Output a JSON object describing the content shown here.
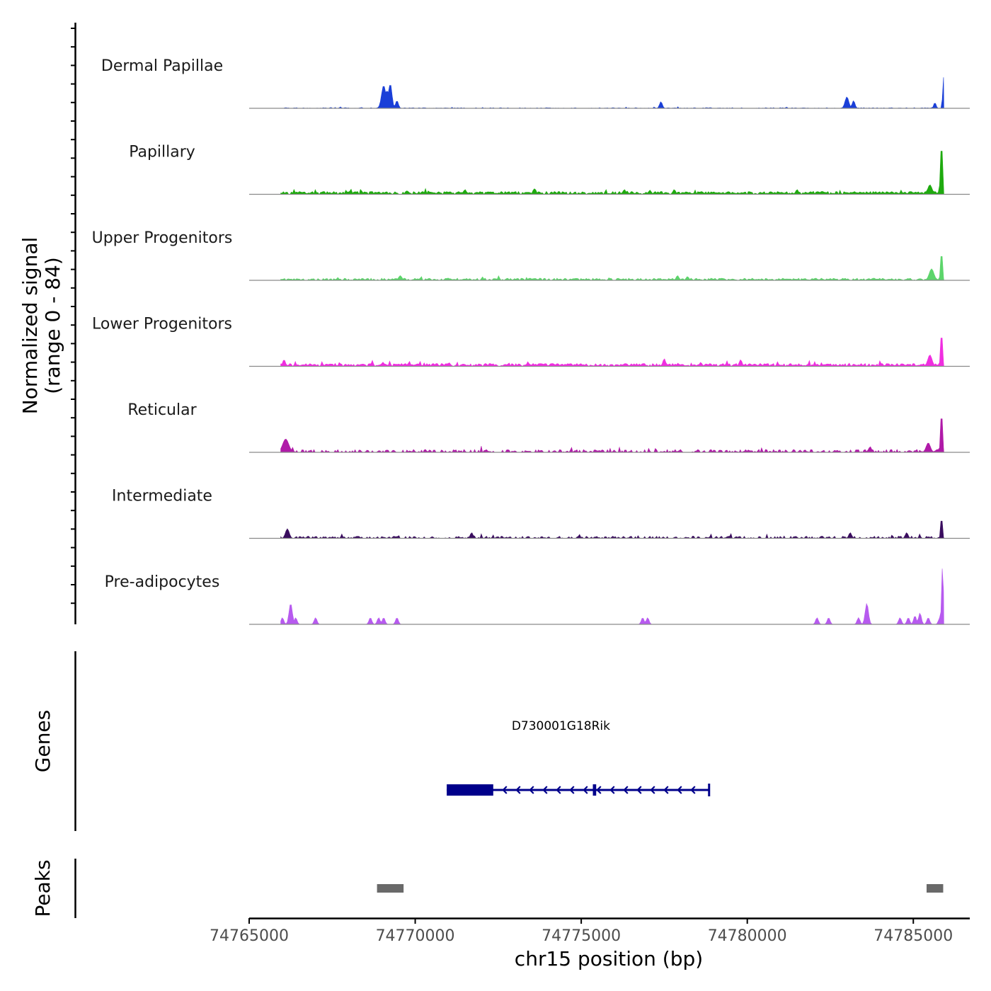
{
  "chart_data": {
    "type": "coverage-track",
    "ylabel_line1": "Normalized signal",
    "ylabel_line2": "(range 0 - 84)",
    "signal_range": [
      0,
      84
    ],
    "xlabel": "chr15 position (bp)",
    "xlim": [
      74765000,
      74786700
    ],
    "xticks": [
      74765000,
      74770000,
      74775000,
      74780000,
      74785000
    ],
    "xtick_labels": [
      "74765000",
      "74770000",
      "74775000",
      "74780000",
      "74785000"
    ],
    "tracks": [
      {
        "name": "Dermal Papillae",
        "color": "#1a3fd8",
        "baseline": 0.5,
        "density": 0.45,
        "peaks": [
          {
            "pos": 74769050,
            "height": 24,
            "width": 90
          },
          {
            "pos": 74769250,
            "height": 26,
            "width": 70
          },
          {
            "pos": 74769150,
            "height": 18,
            "width": 140
          },
          {
            "pos": 74769450,
            "height": 8,
            "width": 60
          },
          {
            "pos": 74777400,
            "height": 7,
            "width": 60
          },
          {
            "pos": 74783000,
            "height": 12,
            "width": 80
          },
          {
            "pos": 74783200,
            "height": 8,
            "width": 60
          },
          {
            "pos": 74785650,
            "height": 6,
            "width": 50
          },
          {
            "pos": 74785900,
            "height": 38,
            "width": 25
          }
        ]
      },
      {
        "name": "Papillary",
        "color": "#1faa0f",
        "baseline": 2,
        "density": 0.95,
        "peaks": [
          {
            "pos": 74771500,
            "height": 5,
            "width": 60
          },
          {
            "pos": 74773600,
            "height": 6,
            "width": 60
          },
          {
            "pos": 74776300,
            "height": 5,
            "width": 60
          },
          {
            "pos": 74777800,
            "height": 5,
            "width": 60
          },
          {
            "pos": 74781500,
            "height": 5,
            "width": 60
          },
          {
            "pos": 74785500,
            "height": 10,
            "width": 90
          },
          {
            "pos": 74785850,
            "height": 55,
            "width": 45
          }
        ]
      },
      {
        "name": "Upper Progenitors",
        "color": "#5cd56b",
        "baseline": 1.5,
        "density": 0.85,
        "peaks": [
          {
            "pos": 74769550,
            "height": 5,
            "width": 70
          },
          {
            "pos": 74777900,
            "height": 5,
            "width": 60
          },
          {
            "pos": 74778200,
            "height": 4,
            "width": 60
          },
          {
            "pos": 74785550,
            "height": 12,
            "width": 100
          },
          {
            "pos": 74785850,
            "height": 32,
            "width": 40
          }
        ]
      },
      {
        "name": "Lower Progenitors",
        "color": "#f02ee0",
        "baseline": 2,
        "density": 0.95,
        "peaks": [
          {
            "pos": 74766050,
            "height": 7,
            "width": 60
          },
          {
            "pos": 74777500,
            "height": 8,
            "width": 60
          },
          {
            "pos": 74779800,
            "height": 7,
            "width": 60
          },
          {
            "pos": 74785500,
            "height": 12,
            "width": 90
          },
          {
            "pos": 74785850,
            "height": 38,
            "width": 40
          }
        ]
      },
      {
        "name": "Reticular",
        "color": "#b01aa8",
        "baseline": 2,
        "density": 0.6,
        "peaks": [
          {
            "pos": 74766100,
            "height": 14,
            "width": 130
          },
          {
            "pos": 74783700,
            "height": 6,
            "width": 60
          },
          {
            "pos": 74785450,
            "height": 10,
            "width": 90
          },
          {
            "pos": 74785850,
            "height": 45,
            "width": 40
          }
        ]
      },
      {
        "name": "Intermediate",
        "color": "#3a0d5f",
        "baseline": 1.5,
        "density": 0.55,
        "peaks": [
          {
            "pos": 74766150,
            "height": 10,
            "width": 80
          },
          {
            "pos": 74771700,
            "height": 6,
            "width": 60
          },
          {
            "pos": 74783100,
            "height": 6,
            "width": 60
          },
          {
            "pos": 74784800,
            "height": 6,
            "width": 60
          },
          {
            "pos": 74785850,
            "height": 25,
            "width": 35
          }
        ]
      },
      {
        "name": "Pre-adipocytes",
        "color": "#b75aef",
        "baseline": 0,
        "density": 0,
        "peaks": [
          {
            "pos": 74766000,
            "height": 7,
            "width": 60
          },
          {
            "pos": 74766250,
            "height": 22,
            "width": 70
          },
          {
            "pos": 74766400,
            "height": 7,
            "width": 60
          },
          {
            "pos": 74767000,
            "height": 7,
            "width": 60
          },
          {
            "pos": 74768650,
            "height": 7,
            "width": 60
          },
          {
            "pos": 74768900,
            "height": 7,
            "width": 60
          },
          {
            "pos": 74769050,
            "height": 7,
            "width": 60
          },
          {
            "pos": 74769450,
            "height": 7,
            "width": 60
          },
          {
            "pos": 74776850,
            "height": 7,
            "width": 60
          },
          {
            "pos": 74777000,
            "height": 7,
            "width": 60
          },
          {
            "pos": 74782100,
            "height": 7,
            "width": 60
          },
          {
            "pos": 74782450,
            "height": 7,
            "width": 60
          },
          {
            "pos": 74783350,
            "height": 7,
            "width": 60
          },
          {
            "pos": 74783600,
            "height": 22,
            "width": 70
          },
          {
            "pos": 74784600,
            "height": 7,
            "width": 60
          },
          {
            "pos": 74784850,
            "height": 7,
            "width": 60
          },
          {
            "pos": 74785050,
            "height": 9,
            "width": 60
          },
          {
            "pos": 74785200,
            "height": 12,
            "width": 60
          },
          {
            "pos": 74785450,
            "height": 7,
            "width": 60
          },
          {
            "pos": 74785800,
            "height": 7,
            "width": 60
          },
          {
            "pos": 74785880,
            "height": 62,
            "width": 40
          }
        ]
      }
    ],
    "genes": {
      "title": "Genes",
      "items": [
        {
          "name": "D730001G18Rik",
          "color": "#00008b",
          "strand": "-",
          "start": 74770950,
          "end": 74778850,
          "exons": [
            {
              "start": 74770950,
              "end": 74772350
            },
            {
              "start": 74775350,
              "end": 74775450
            }
          ]
        }
      ]
    },
    "peaks_track": {
      "title": "Peaks",
      "color": "#696969",
      "regions": [
        {
          "start": 74768850,
          "end": 74769650
        },
        {
          "start": 74785400,
          "end": 74785900
        }
      ]
    }
  }
}
